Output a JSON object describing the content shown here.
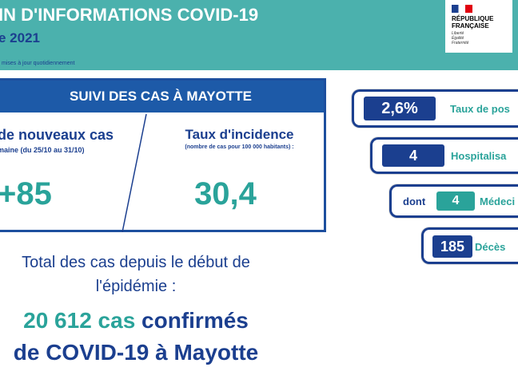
{
  "header": {
    "title": "IN D'INFORMATIONS COVID-19",
    "subtitle": "e 2021",
    "note": "mises à jour quotidiennement"
  },
  "logo": {
    "name": [
      "RÉPUBLIQUE",
      "FRANÇAISE"
    ],
    "motto": [
      "Liberté",
      "Égalité",
      "Fraternité"
    ]
  },
  "panel": {
    "title": "SUIVI DES CAS À MAYOTTE",
    "new_cases": {
      "label": "de nouveaux cas",
      "period": "maine (du 25/10 au 31/10)",
      "value": "+85"
    },
    "incidence": {
      "label": "Taux d'incidence",
      "note": "(nombre de cas pour 100 000 habitants) :",
      "value": "30,4"
    }
  },
  "total": {
    "intro": [
      "Total des cas depuis le début de",
      "l'épidémie :"
    ],
    "count": "20 612 cas",
    "word": "confirmés",
    "line2": "de COVID-19 à Mayotte"
  },
  "indicators": [
    {
      "value": "2,6%",
      "label": "Taux de pos"
    },
    {
      "value": "4",
      "label": "Hospitalisa"
    },
    {
      "prefix": "dont",
      "value": "4",
      "label": "Médeci"
    },
    {
      "value": "185",
      "label": "Décès"
    }
  ]
}
